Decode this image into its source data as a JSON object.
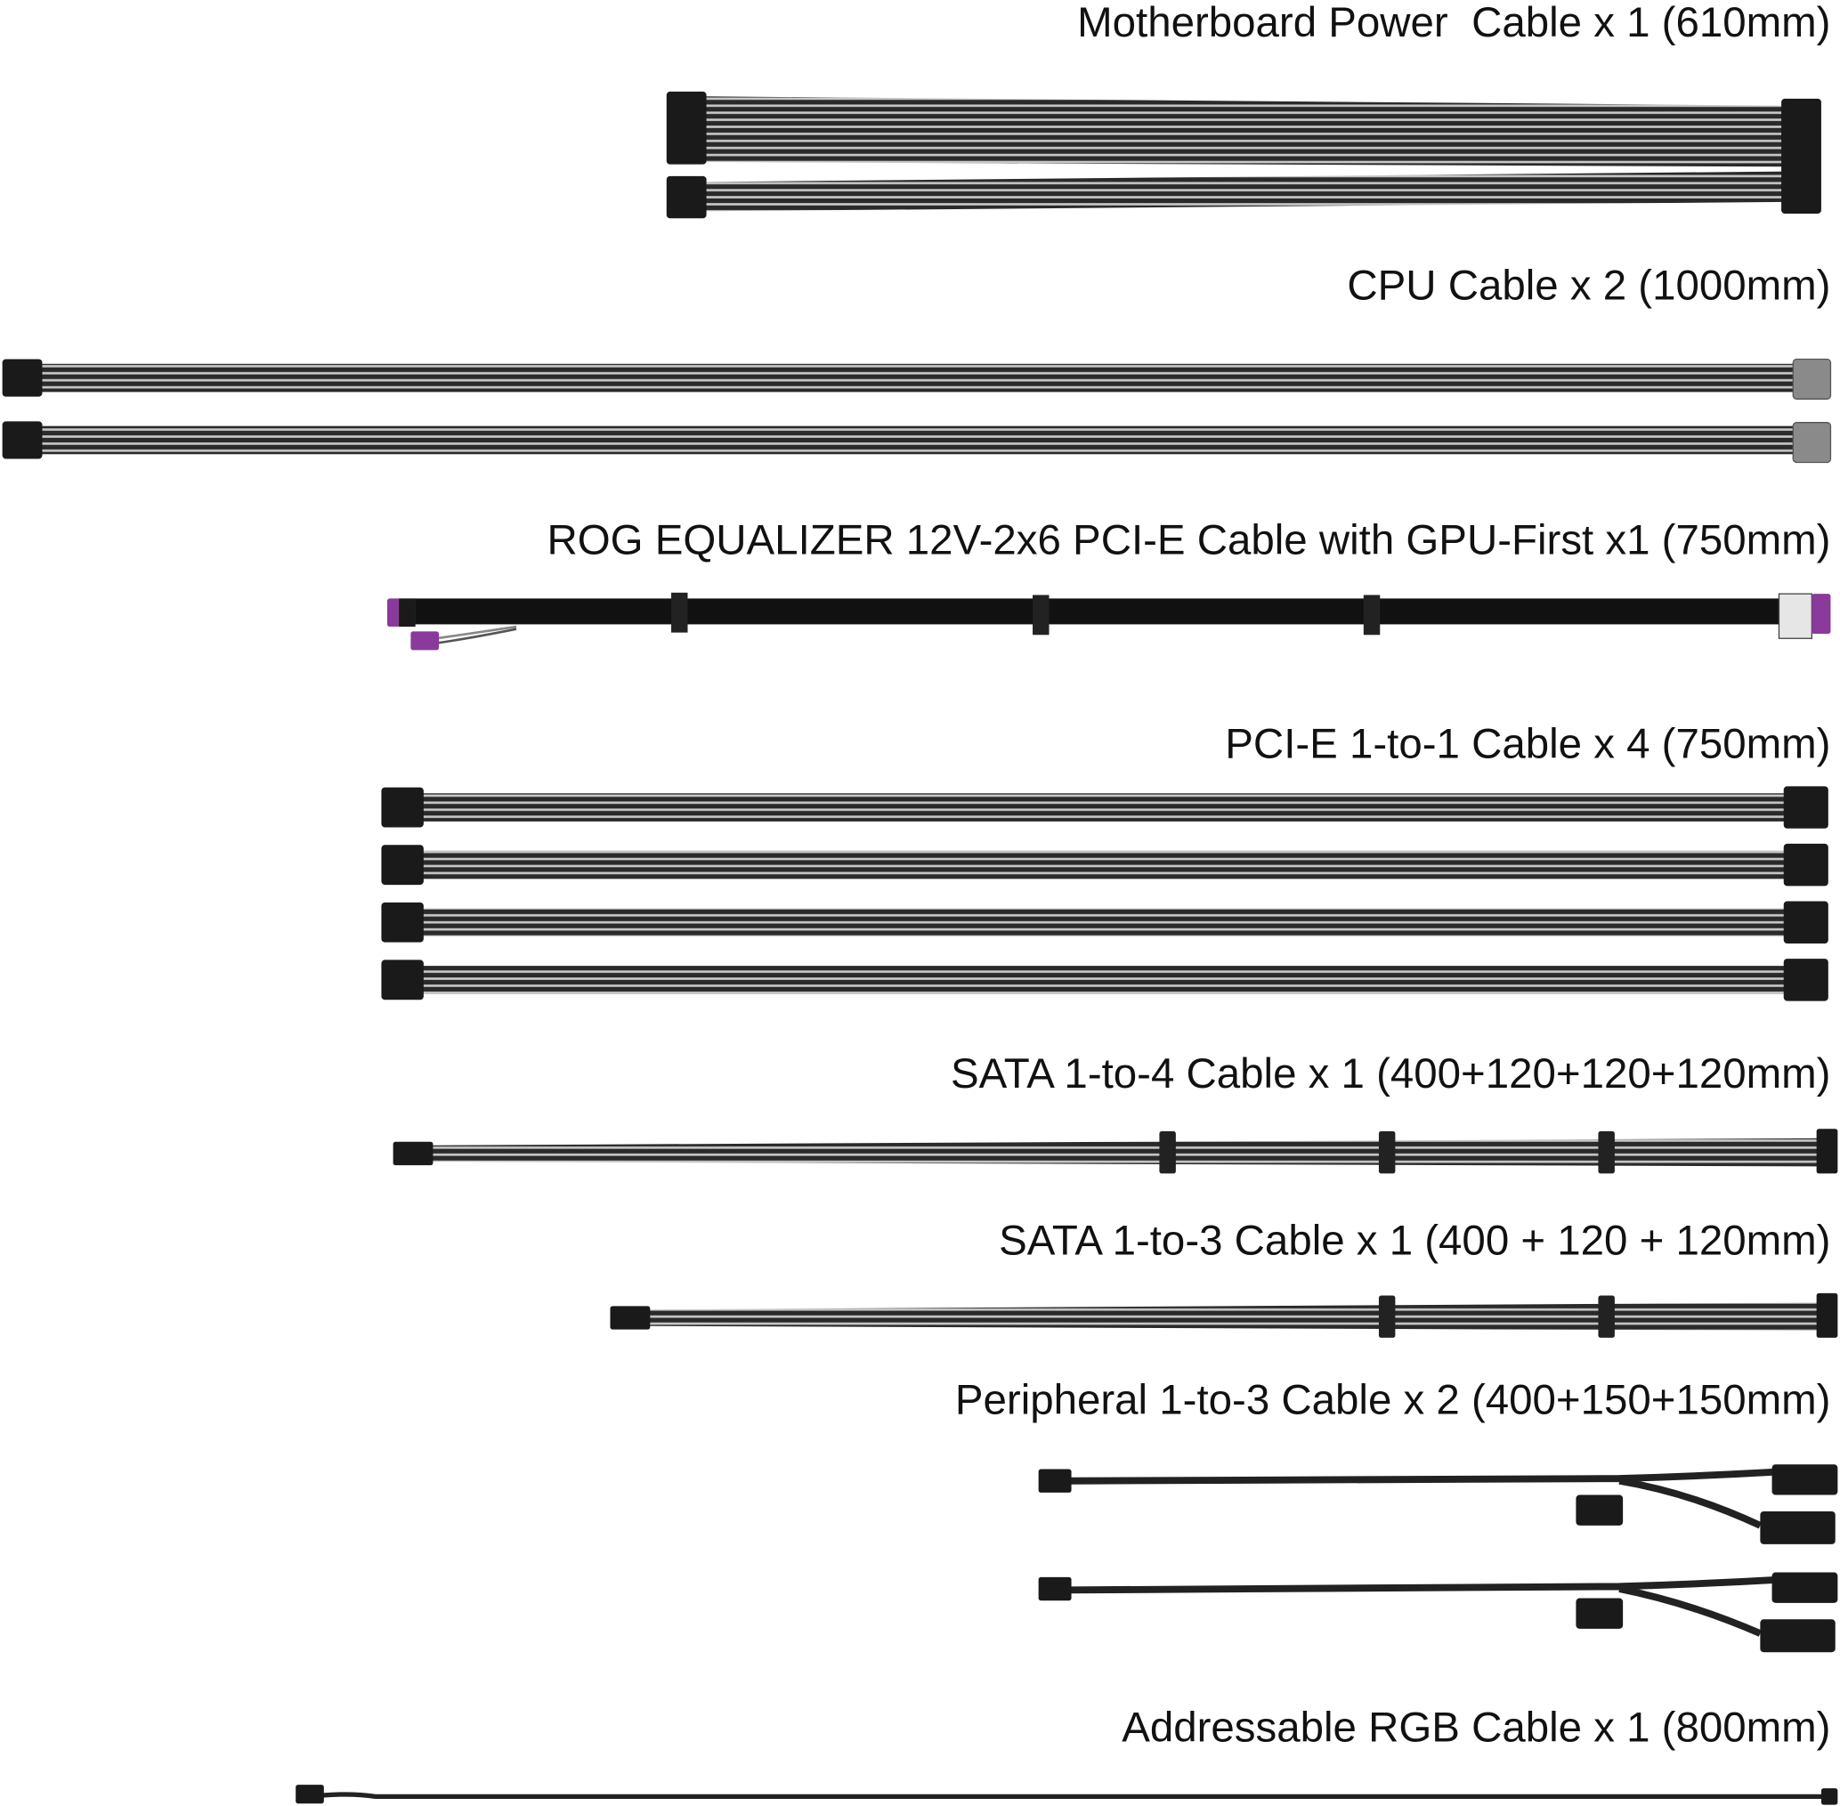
{
  "cables": [
    {
      "label": "Motherboard Power  Cable x 1 (610mm)"
    },
    {
      "label": "CPU Cable x 2 (1000mm)"
    },
    {
      "label": "ROG EQUALIZER 12V-2x6 PCI-E Cable with GPU-First x1 (750mm)"
    },
    {
      "label": "PCI-E 1-to-1 Cable x 4 (750mm)"
    },
    {
      "label": "SATA 1-to-4 Cable x 1 (400+120+120+120mm)"
    },
    {
      "label": "SATA 1-to-3 Cable x 1 (400 + 120 + 120mm)"
    },
    {
      "label": "Peripheral 1-to-3 Cable x 2 (400+150+150mm)"
    },
    {
      "label": "Addressable RGB Cable x 1 (800mm)"
    }
  ]
}
